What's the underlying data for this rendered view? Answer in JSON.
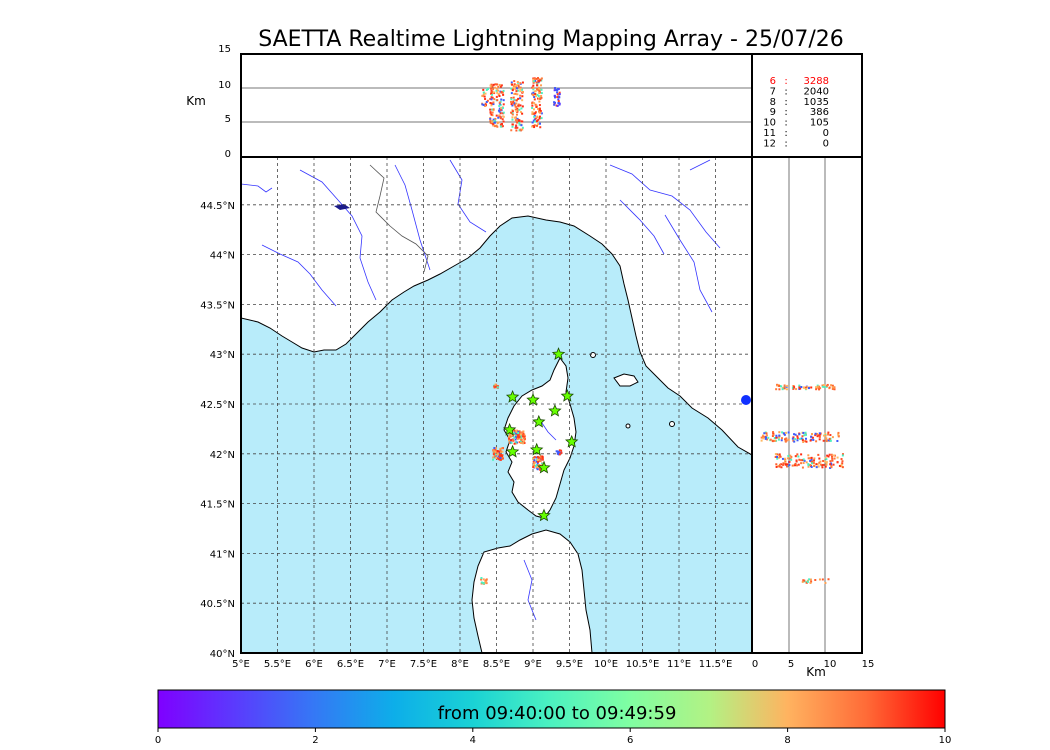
{
  "title": "SAETTA Realtime Lightning Mapping Array - 25/07/26",
  "altitude_unit": "Km",
  "altitude_ticks": [
    "15",
    "10",
    "5",
    "0"
  ],
  "side_ticks": [
    "0",
    "5",
    "10",
    "15"
  ],
  "lon_ticks": [
    "5°E",
    "5.5°E",
    "6°E",
    "6.5°E",
    "7°E",
    "7.5°E",
    "8°E",
    "8.5°E",
    "9°E",
    "9.5°E",
    "10°E",
    "10.5°E",
    "11°E",
    "11.5°E"
  ],
  "lat_ticks": [
    "44.5°N",
    "44°N",
    "43.5°N",
    "43°N",
    "42.5°N",
    "42°N",
    "41.5°N",
    "41°N",
    "40.5°N",
    "40°N"
  ],
  "counts": [
    {
      "label": "6",
      "value": "3288",
      "color": "#ff0000"
    },
    {
      "label": "7",
      "value": "2040",
      "color": "#000000"
    },
    {
      "label": "8",
      "value": "1035",
      "color": "#000000"
    },
    {
      "label": "9",
      "value": "386",
      "color": "#000000"
    },
    {
      "label": "10",
      "value": "105",
      "color": "#000000"
    },
    {
      "label": "11",
      "value": "0",
      "color": "#000000"
    },
    {
      "label": "12",
      "value": "0",
      "color": "#000000"
    }
  ],
  "colorbar": {
    "label": "from 09:40:00 to 09:49:59",
    "ticks": [
      "0",
      "2",
      "4",
      "6",
      "8",
      "10"
    ]
  },
  "colors": {
    "sea": "#b8ecfa",
    "river": "#3535ff",
    "station": "#66ff00"
  },
  "stations": [
    {
      "lon": 9.35,
      "lat": 43.0
    },
    {
      "lon": 8.72,
      "lat": 42.57
    },
    {
      "lon": 9.0,
      "lat": 42.54
    },
    {
      "lon": 9.47,
      "lat": 42.58
    },
    {
      "lon": 9.3,
      "lat": 42.43
    },
    {
      "lon": 9.08,
      "lat": 42.32
    },
    {
      "lon": 8.68,
      "lat": 42.24
    },
    {
      "lon": 9.53,
      "lat": 42.12
    },
    {
      "lon": 8.72,
      "lat": 42.02
    },
    {
      "lon": 9.05,
      "lat": 42.04
    },
    {
      "lon": 9.15,
      "lat": 41.86
    },
    {
      "lon": 9.15,
      "lat": 41.38
    }
  ]
}
